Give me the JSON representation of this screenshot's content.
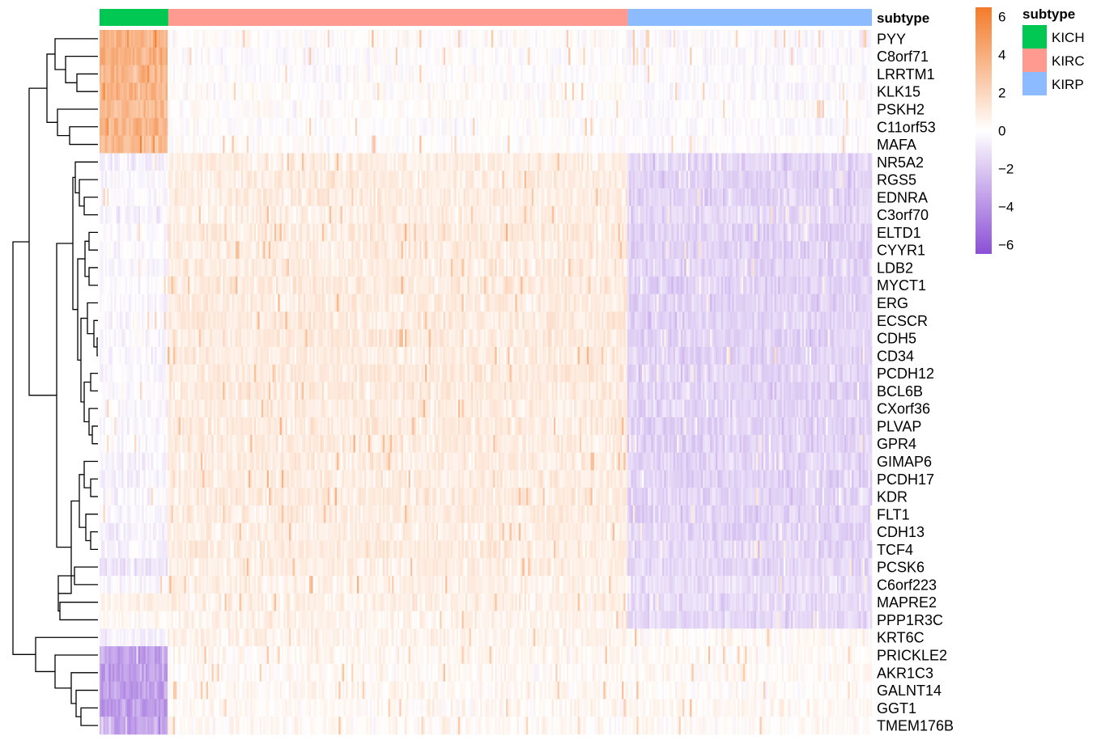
{
  "chart_data": {
    "type": "heatmap",
    "title": "",
    "annotation": {
      "name": "subtype",
      "groups": [
        {
          "label": "KICH",
          "color": "#00C853",
          "sample_share": 0.089
        },
        {
          "label": "KIRC",
          "color": "#FF9A90",
          "sample_share": 0.595
        },
        {
          "label": "KIRP",
          "color": "#8CBBFF",
          "sample_share": 0.316
        }
      ]
    },
    "genes": [
      "PYY",
      "C8orf71",
      "LRRTM1",
      "KLK15",
      "PSKH2",
      "C11orf53",
      "MAFA",
      "NR5A2",
      "RGS5",
      "EDNRA",
      "C3orf70",
      "ELTD1",
      "CYYR1",
      "LDB2",
      "MYCT1",
      "ERG",
      "ECSCR",
      "CDH5",
      "CD34",
      "PCDH12",
      "BCL6B",
      "CXorf36",
      "PLVAP",
      "GPR4",
      "GIMAP6",
      "PCDH17",
      "KDR",
      "FLT1",
      "CDH13",
      "TCF4",
      "PCSK6",
      "C6orf223",
      "MAPRE2",
      "PPP1R3C",
      "KRT6C",
      "PRICKLE2",
      "AKR1C3",
      "GALNT14",
      "GGT1",
      "TMEM176B"
    ],
    "group_means": [
      [
        3.6,
        0.1,
        -0.2
      ],
      [
        3.8,
        -0.1,
        -0.2
      ],
      [
        3.5,
        0.0,
        -0.2
      ],
      [
        3.7,
        0.1,
        -0.2
      ],
      [
        3.4,
        0.1,
        -0.1
      ],
      [
        3.9,
        0.0,
        -0.2
      ],
      [
        3.3,
        0.1,
        -0.1
      ],
      [
        -0.6,
        0.8,
        -1.5
      ],
      [
        -0.3,
        0.9,
        -1.6
      ],
      [
        -0.2,
        0.9,
        -1.5
      ],
      [
        -0.5,
        0.8,
        -1.4
      ],
      [
        -0.2,
        1.0,
        -1.6
      ],
      [
        -0.2,
        0.9,
        -1.6
      ],
      [
        -0.3,
        0.9,
        -1.6
      ],
      [
        -0.2,
        1.0,
        -1.6
      ],
      [
        -0.3,
        0.9,
        -1.6
      ],
      [
        -0.2,
        1.0,
        -1.6
      ],
      [
        -0.3,
        1.0,
        -1.6
      ],
      [
        -0.3,
        0.9,
        -1.6
      ],
      [
        -0.3,
        1.0,
        -1.5
      ],
      [
        -0.2,
        1.0,
        -1.6
      ],
      [
        -0.3,
        0.9,
        -1.5
      ],
      [
        -0.2,
        1.0,
        -1.6
      ],
      [
        -0.3,
        0.9,
        -1.6
      ],
      [
        -0.5,
        0.9,
        -1.5
      ],
      [
        -0.4,
        0.9,
        -1.6
      ],
      [
        -0.3,
        0.9,
        -1.5
      ],
      [
        -0.3,
        0.9,
        -1.6
      ],
      [
        -0.5,
        0.8,
        -1.5
      ],
      [
        -0.4,
        0.9,
        -1.4
      ],
      [
        -1.0,
        0.8,
        -1.4
      ],
      [
        -0.3,
        0.7,
        -1.2
      ],
      [
        0.6,
        0.7,
        -1.3
      ],
      [
        0.4,
        0.6,
        -1.4
      ],
      [
        -0.4,
        0.6,
        0.3
      ],
      [
        -3.2,
        0.4,
        0.2
      ],
      [
        -3.5,
        0.3,
        0.3
      ],
      [
        -3.4,
        0.4,
        0.2
      ],
      [
        -3.6,
        0.3,
        0.3
      ],
      [
        -3.3,
        0.3,
        0.2
      ]
    ],
    "color_scale": {
      "min": -6.5,
      "max": 6.5,
      "low_color": "#8C4FD6",
      "mid_color": "#FFFFFF",
      "high_color": "#F37B2A",
      "ticks": [
        6,
        4,
        2,
        0,
        -2,
        -4,
        -6
      ],
      "tick_labels": [
        "6",
        "4",
        "2",
        "0",
        "−2",
        "−4",
        "−6"
      ]
    },
    "dendrogram": "rows clustered; two top-level clusters"
  }
}
